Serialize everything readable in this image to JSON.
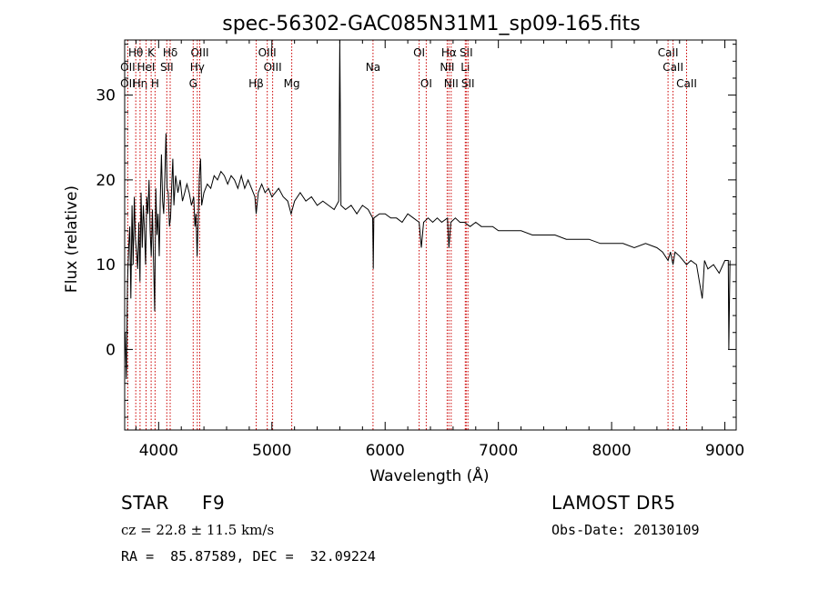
{
  "chart_data": {
    "type": "line",
    "title": "spec-56302-GAC085N31M1_sp09-165.fits",
    "xlabel": "Wavelength (Å)",
    "ylabel": "Flux (relative)",
    "xlim": [
      3700,
      9100
    ],
    "ylim": [
      -9.5,
      36.5
    ],
    "xticks": [
      4000,
      5000,
      6000,
      7000,
      8000,
      9000
    ],
    "yticks": [
      0,
      10,
      20,
      30
    ],
    "grid": false,
    "colors": {
      "spectrum": "#000000",
      "lines": "#cc0000",
      "axes": "#000000"
    },
    "series": [
      {
        "values": [
          [
            3705,
            2.0
          ],
          [
            3715,
            -3.5
          ],
          [
            3725,
            8.0
          ],
          [
            3735,
            12.0
          ],
          [
            3745,
            14.5
          ],
          [
            3755,
            6.0
          ],
          [
            3765,
            17.0
          ],
          [
            3775,
            10.0
          ],
          [
            3785,
            18.0
          ],
          [
            3795,
            13.0
          ],
          [
            3805,
            11.5
          ],
          [
            3815,
            9.5
          ],
          [
            3825,
            15.0
          ],
          [
            3835,
            8.0
          ],
          [
            3845,
            18.5
          ],
          [
            3855,
            12.0
          ],
          [
            3865,
            17.0
          ],
          [
            3875,
            14.0
          ],
          [
            3885,
            10.0
          ],
          [
            3895,
            18.0
          ],
          [
            3905,
            16.0
          ],
          [
            3915,
            20.0
          ],
          [
            3925,
            14.0
          ],
          [
            3935,
            11.0
          ],
          [
            3945,
            16.5
          ],
          [
            3955,
            10.5
          ],
          [
            3965,
            4.5
          ],
          [
            3975,
            19.0
          ],
          [
            3985,
            13.5
          ],
          [
            3995,
            16.0
          ],
          [
            4005,
            11.0
          ],
          [
            4015,
            18.0
          ],
          [
            4025,
            23.0
          ],
          [
            4035,
            17.5
          ],
          [
            4045,
            16.0
          ],
          [
            4055,
            20.5
          ],
          [
            4065,
            25.5
          ],
          [
            4075,
            19.0
          ],
          [
            4085,
            18.5
          ],
          [
            4095,
            14.5
          ],
          [
            4105,
            15.5
          ],
          [
            4115,
            19.0
          ],
          [
            4125,
            22.5
          ],
          [
            4135,
            17.0
          ],
          [
            4150,
            20.5
          ],
          [
            4170,
            18.5
          ],
          [
            4190,
            20.0
          ],
          [
            4210,
            17.5
          ],
          [
            4230,
            18.5
          ],
          [
            4250,
            19.5
          ],
          [
            4270,
            18.5
          ],
          [
            4290,
            17.0
          ],
          [
            4310,
            18.0
          ],
          [
            4320,
            14.5
          ],
          [
            4330,
            16.0
          ],
          [
            4340,
            11.0
          ],
          [
            4350,
            15.5
          ],
          [
            4360,
            20.5
          ],
          [
            4370,
            22.5
          ],
          [
            4380,
            17.0
          ],
          [
            4400,
            18.5
          ],
          [
            4430,
            19.5
          ],
          [
            4460,
            19.0
          ],
          [
            4490,
            20.5
          ],
          [
            4520,
            20.0
          ],
          [
            4550,
            21.0
          ],
          [
            4580,
            20.5
          ],
          [
            4610,
            19.5
          ],
          [
            4640,
            20.5
          ],
          [
            4670,
            20.0
          ],
          [
            4700,
            19.0
          ],
          [
            4730,
            20.5
          ],
          [
            4760,
            19.0
          ],
          [
            4790,
            20.0
          ],
          [
            4820,
            19.0
          ],
          [
            4850,
            18.0
          ],
          [
            4861,
            16.0
          ],
          [
            4880,
            18.5
          ],
          [
            4910,
            19.5
          ],
          [
            4940,
            18.5
          ],
          [
            4970,
            19.0
          ],
          [
            5000,
            18.0
          ],
          [
            5030,
            18.5
          ],
          [
            5060,
            19.0
          ],
          [
            5100,
            18.0
          ],
          [
            5140,
            17.5
          ],
          [
            5170,
            16.0
          ],
          [
            5200,
            17.5
          ],
          [
            5250,
            18.5
          ],
          [
            5300,
            17.5
          ],
          [
            5350,
            18.0
          ],
          [
            5400,
            17.0
          ],
          [
            5450,
            17.5
          ],
          [
            5500,
            17.0
          ],
          [
            5550,
            16.5
          ],
          [
            5590,
            17.5
          ],
          [
            5600,
            36.5
          ],
          [
            5610,
            17.0
          ],
          [
            5650,
            16.5
          ],
          [
            5700,
            17.0
          ],
          [
            5750,
            16.0
          ],
          [
            5800,
            17.0
          ],
          [
            5850,
            16.5
          ],
          [
            5890,
            15.5
          ],
          [
            5895,
            9.5
          ],
          [
            5900,
            15.5
          ],
          [
            5950,
            16.0
          ],
          [
            6000,
            16.0
          ],
          [
            6050,
            15.5
          ],
          [
            6100,
            15.5
          ],
          [
            6150,
            15.0
          ],
          [
            6200,
            16.0
          ],
          [
            6250,
            15.5
          ],
          [
            6300,
            15.0
          ],
          [
            6320,
            12.0
          ],
          [
            6340,
            15.0
          ],
          [
            6380,
            15.5
          ],
          [
            6420,
            15.0
          ],
          [
            6460,
            15.5
          ],
          [
            6500,
            15.0
          ],
          [
            6550,
            15.5
          ],
          [
            6563,
            12.0
          ],
          [
            6580,
            15.0
          ],
          [
            6620,
            15.5
          ],
          [
            6660,
            15.0
          ],
          [
            6700,
            15.0
          ],
          [
            6750,
            14.5
          ],
          [
            6800,
            15.0
          ],
          [
            6850,
            14.5
          ],
          [
            6900,
            14.5
          ],
          [
            6950,
            14.5
          ],
          [
            7000,
            14.0
          ],
          [
            7100,
            14.0
          ],
          [
            7200,
            14.0
          ],
          [
            7300,
            13.5
          ],
          [
            7400,
            13.5
          ],
          [
            7500,
            13.5
          ],
          [
            7600,
            13.0
          ],
          [
            7700,
            13.0
          ],
          [
            7800,
            13.0
          ],
          [
            7900,
            12.5
          ],
          [
            8000,
            12.5
          ],
          [
            8100,
            12.5
          ],
          [
            8200,
            12.0
          ],
          [
            8300,
            12.5
          ],
          [
            8400,
            12.0
          ],
          [
            8450,
            11.5
          ],
          [
            8498,
            10.5
          ],
          [
            8520,
            11.5
          ],
          [
            8542,
            10.0
          ],
          [
            8560,
            11.5
          ],
          [
            8600,
            11.0
          ],
          [
            8662,
            10.0
          ],
          [
            8700,
            10.5
          ],
          [
            8750,
            10.0
          ],
          [
            8800,
            6.0
          ],
          [
            8820,
            10.5
          ],
          [
            8850,
            9.5
          ],
          [
            8900,
            10.0
          ],
          [
            8950,
            9.0
          ],
          [
            9000,
            10.5
          ],
          [
            9030,
            10.5
          ],
          [
            9035,
            0.0
          ],
          [
            9045,
            10.5
          ]
        ]
      }
    ],
    "lines": [
      {
        "label": "Hθ",
        "wave": 3798,
        "row": 1
      },
      {
        "label": "OII",
        "wave": 3727,
        "row": 2
      },
      {
        "label": "OII",
        "wave": 3727,
        "row": 3
      },
      {
        "label": "Hη",
        "wave": 3836,
        "row": 3
      },
      {
        "label": "K",
        "wave": 3934,
        "row": 1
      },
      {
        "label": "HeI",
        "wave": 3889,
        "row": 2
      },
      {
        "label": "H",
        "wave": 3968,
        "row": 3
      },
      {
        "label": "Hδ",
        "wave": 4102,
        "row": 1
      },
      {
        "label": "SII",
        "wave": 4072,
        "row": 2
      },
      {
        "label": "OIII",
        "wave": 4363,
        "row": 1
      },
      {
        "label": "Hγ",
        "wave": 4341,
        "row": 2
      },
      {
        "label": "G",
        "wave": 4305,
        "row": 3
      },
      {
        "label": "Hβ",
        "wave": 4861,
        "row": 3
      },
      {
        "label": "OIII",
        "wave": 4959,
        "row": 1
      },
      {
        "label": "OIII",
        "wave": 5007,
        "row": 2
      },
      {
        "label": "Mg",
        "wave": 5175,
        "row": 3
      },
      {
        "label": "Na",
        "wave": 5893,
        "row": 2
      },
      {
        "label": "OI",
        "wave": 6300,
        "row": 1
      },
      {
        "label": "OI",
        "wave": 6363,
        "row": 3
      },
      {
        "label": "Hα",
        "wave": 6563,
        "row": 1
      },
      {
        "label": "SII",
        "wave": 6716,
        "row": 1
      },
      {
        "label": "NII",
        "wave": 6548,
        "row": 2
      },
      {
        "label": "Li",
        "wave": 6708,
        "row": 2
      },
      {
        "label": "NII",
        "wave": 6583,
        "row": 3
      },
      {
        "label": "SII",
        "wave": 6731,
        "row": 3
      },
      {
        "label": "CaII",
        "wave": 8498,
        "row": 1
      },
      {
        "label": "CaII",
        "wave": 8542,
        "row": 2
      },
      {
        "label": "CaII",
        "wave": 8662,
        "row": 3
      }
    ]
  },
  "info": {
    "object_class": "STAR",
    "subclass": "F9",
    "redshift": "cz = 22.8 ± 11.5 km/s",
    "coords": "RA =  85.87589, DEC =  32.09224",
    "survey": "LAMOST DR5",
    "obs_date": "Obs-Date: 20130109"
  }
}
